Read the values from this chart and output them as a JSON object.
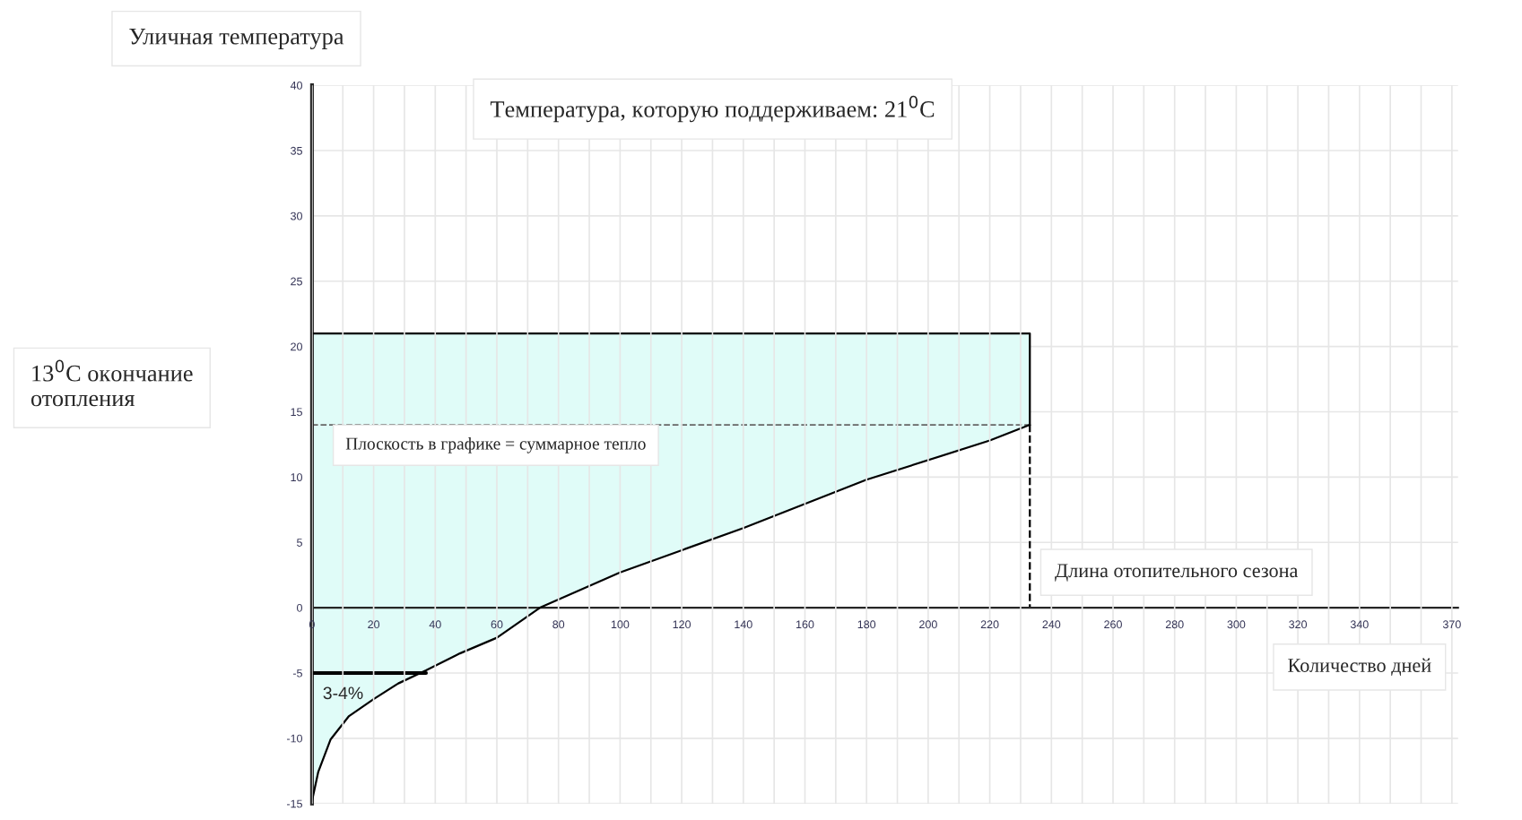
{
  "chart_data": {
    "type": "line",
    "ylabel": "Уличная температура",
    "xlabel": "Количество дней",
    "xlim": [
      0,
      372
    ],
    "ylim": [
      -15,
      40
    ],
    "xticks": [
      0,
      {
        "value": 10,
        "label": null
      },
      20,
      {
        "value": 30,
        "label": null
      },
      40,
      {
        "value": 50,
        "label": null
      },
      60,
      {
        "value": 70,
        "label": null
      },
      80,
      {
        "value": 90,
        "label": null
      },
      100,
      {
        "value": 110,
        "label": null
      },
      120,
      {
        "value": 130,
        "label": null
      },
      140,
      {
        "value": 150,
        "label": null
      },
      160,
      {
        "value": 170,
        "label": null
      },
      180,
      {
        "value": 190,
        "label": null
      },
      200,
      {
        "value": 210,
        "label": null
      },
      220,
      {
        "value": 230,
        "label": null
      },
      240,
      {
        "value": 250,
        "label": null
      },
      260,
      {
        "value": 270,
        "label": null
      },
      280,
      {
        "value": 290,
        "label": null
      },
      300,
      {
        "value": 310,
        "label": null
      },
      320,
      {
        "value": 330,
        "label": null
      },
      340,
      {
        "value": 350,
        "label": null
      },
      {
        "value": 360,
        "label": null
      },
      370
    ],
    "yticks": [
      -15,
      -10,
      -5,
      0,
      5,
      10,
      15,
      20,
      25,
      30,
      35,
      40
    ],
    "grid": true,
    "marker": "none",
    "line_style": "solid",
    "series": [
      {
        "color": "#000000",
        "x": [
          0,
          2,
          6,
          12,
          20,
          28,
          37,
          48,
          60,
          74,
          100,
          140,
          180,
          220,
          233
        ],
        "values": [
          -14.8,
          -12.6,
          -10.1,
          -8.3,
          -7,
          -5.8,
          -4.8,
          -3.5,
          -2.3,
          0,
          2.7,
          6.1,
          9.8,
          12.8,
          14
        ],
        "upper": [
          21,
          21,
          21,
          21,
          21,
          21,
          21,
          21,
          21,
          21,
          21,
          21,
          21,
          21,
          21
        ],
        "lower": [
          -14.8,
          -12.6,
          -10.1,
          -8.3,
          -7,
          -5.8,
          -4.8,
          -3.5,
          -2.3,
          0,
          2.7,
          6.1,
          9.8,
          12.8,
          14
        ]
      },
      {
        "color": "#000000",
        "x": [
          0,
          233,
          233
        ],
        "values": [
          21,
          21,
          14
        ]
      },
      {
        "color": "#000000",
        "x": [
          0,
          37
        ],
        "values": [
          -5,
          -5
        ]
      }
    ],
    "ref_lines": [
      {
        "axis": "y",
        "value": 14,
        "color": "#666666",
        "line_style": "dashed"
      },
      {
        "axis": "x",
        "value": 233,
        "color": "#000000",
        "line_style": "dashed"
      }
    ],
    "annotations": [
      "Температура, которую поддерживаем: 21$^{0}$C",
      "13$^{0}$C окончание\nотопления",
      "Плоскость в графике = суммарное тепло",
      "Длина отопительного сезона",
      "3-4%"
    ]
  }
}
